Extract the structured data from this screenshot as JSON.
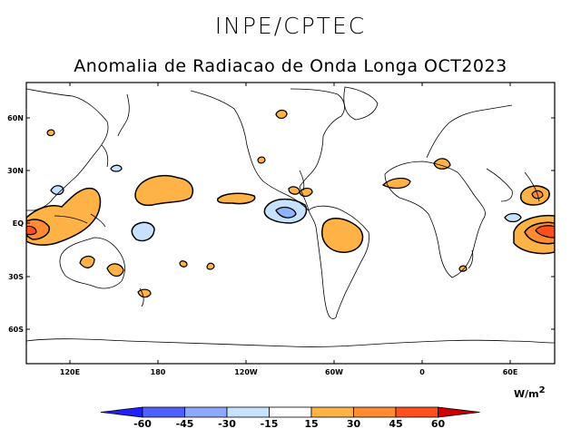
{
  "header": {
    "organization": "INPE/CPTEC",
    "title": "Anomalia de Radiacao de Onda Longa OCT2023"
  },
  "map": {
    "latitude_labels": [
      "60N",
      "30N",
      "EQ",
      "30S",
      "60S"
    ],
    "longitude_labels": [
      "120E",
      "180",
      "120W",
      "60W",
      "0",
      "60E"
    ],
    "positive_color_light": "#ffb347",
    "positive_color_mid": "#ff8c32",
    "positive_color_strong": "#ff5020",
    "negative_color_light": "#c6e2ff",
    "negative_color_mid": "#8fb4ff"
  },
  "colorbar": {
    "units_base": "W/m",
    "units_exp": "2",
    "tick_labels": [
      "-60",
      "-45",
      "-30",
      "-15",
      "15",
      "30",
      "45",
      "60"
    ],
    "colors": [
      "#2020ff",
      "#5060ff",
      "#8fa8ff",
      "#c6e2ff",
      "#ffffff",
      "#ffb347",
      "#ff8c32",
      "#ff5020",
      "#d00000"
    ]
  }
}
